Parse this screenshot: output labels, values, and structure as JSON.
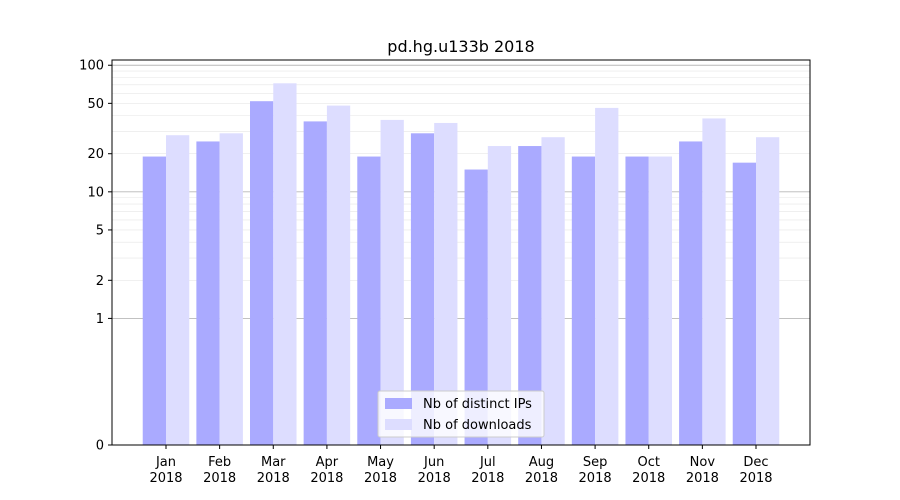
{
  "chart_data": {
    "type": "bar",
    "title": "pd.hg.u133b 2018",
    "xlabel": "",
    "ylabel": "",
    "yscale": "symlog",
    "ylim": [
      0,
      110
    ],
    "yticks": [
      0,
      1,
      2,
      5,
      10,
      20,
      50,
      100
    ],
    "grid": true,
    "legend_position": "bottom-center",
    "categories": [
      "Jan\n2018",
      "Feb\n2018",
      "Mar\n2018",
      "Apr\n2018",
      "May\n2018",
      "Jun\n2018",
      "Jul\n2018",
      "Aug\n2018",
      "Sep\n2018",
      "Oct\n2018",
      "Nov\n2018",
      "Dec\n2018"
    ],
    "category_lines": [
      [
        "Jan",
        "2018"
      ],
      [
        "Feb",
        "2018"
      ],
      [
        "Mar",
        "2018"
      ],
      [
        "Apr",
        "2018"
      ],
      [
        "May",
        "2018"
      ],
      [
        "Jun",
        "2018"
      ],
      [
        "Jul",
        "2018"
      ],
      [
        "Aug",
        "2018"
      ],
      [
        "Sep",
        "2018"
      ],
      [
        "Oct",
        "2018"
      ],
      [
        "Nov",
        "2018"
      ],
      [
        "Dec",
        "2018"
      ]
    ],
    "series": [
      {
        "name": "Nb of distinct IPs",
        "color": "#aaaaff",
        "values": [
          19,
          25,
          52,
          36,
          19,
          29,
          15,
          23,
          19,
          19,
          25,
          17
        ]
      },
      {
        "name": "Nb of downloads",
        "color": "#ddddff",
        "values": [
          28,
          29,
          72,
          48,
          37,
          35,
          23,
          27,
          46,
          19,
          38,
          27
        ]
      }
    ]
  }
}
